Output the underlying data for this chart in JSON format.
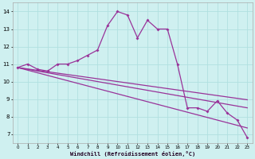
{
  "xlabel": "Windchill (Refroidissement éolien,°C)",
  "background_color": "#cff0f0",
  "grid_color": "#b0e0e0",
  "line_color": "#993399",
  "x_ticks": [
    0,
    1,
    2,
    3,
    4,
    5,
    6,
    7,
    8,
    9,
    10,
    11,
    12,
    13,
    14,
    15,
    16,
    17,
    18,
    19,
    20,
    21,
    22,
    23
  ],
  "y_ticks": [
    7,
    8,
    9,
    10,
    11,
    12,
    13,
    14
  ],
  "ylim": [
    6.5,
    14.5
  ],
  "xlim": [
    -0.5,
    23.5
  ],
  "series1_y": [
    10.8,
    11.0,
    10.7,
    10.6,
    11.0,
    11.0,
    11.2,
    11.5,
    11.8,
    13.2,
    14.0,
    13.8,
    12.5,
    13.5,
    13.0,
    13.0,
    11.0,
    8.5,
    8.5,
    8.3,
    8.9,
    8.2,
    7.8,
    6.8
  ],
  "series2_y": [
    10.8,
    10.72,
    10.64,
    10.56,
    10.48,
    10.4,
    10.32,
    10.24,
    10.16,
    10.08,
    10.0,
    9.92,
    9.84,
    9.76,
    9.68,
    9.6,
    9.52,
    9.44,
    9.36,
    9.28,
    9.2,
    9.12,
    9.04,
    8.96
  ],
  "series3_y": [
    10.8,
    10.7,
    10.6,
    10.5,
    10.4,
    10.3,
    10.2,
    10.1,
    10.0,
    9.9,
    9.8,
    9.7,
    9.6,
    9.5,
    9.4,
    9.3,
    9.2,
    9.1,
    9.0,
    8.9,
    8.8,
    8.7,
    8.6,
    8.5
  ],
  "series4_y": [
    10.8,
    10.65,
    10.5,
    10.35,
    10.2,
    10.05,
    9.9,
    9.75,
    9.6,
    9.45,
    9.3,
    9.15,
    9.0,
    8.85,
    8.7,
    8.55,
    8.4,
    8.25,
    8.1,
    7.95,
    7.8,
    7.65,
    7.5,
    7.35
  ]
}
